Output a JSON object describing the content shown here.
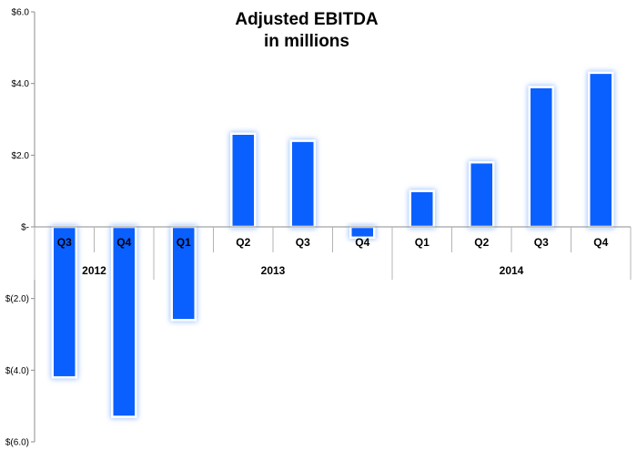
{
  "chart_data": {
    "type": "bar",
    "title": "Adjusted EBITDA",
    "subtitle": "in millions",
    "xlabel": "",
    "ylabel": "",
    "ylim": [
      -6.0,
      6.0
    ],
    "yticks": [
      6.0,
      4.0,
      2.0,
      0.0,
      -2.0,
      -4.0,
      -6.0
    ],
    "ytick_labels": [
      "$6.0",
      "$4.0",
      "$2.0",
      "$-",
      "$(2.0)",
      "$(4.0)",
      "$(6.0)"
    ],
    "categories": [
      "Q3",
      "Q4",
      "Q1",
      "Q2",
      "Q3",
      "Q4",
      "Q1",
      "Q2",
      "Q3",
      "Q4"
    ],
    "years": [
      {
        "label": "2012",
        "start": 0,
        "end": 1
      },
      {
        "label": "2013",
        "start": 2,
        "end": 5
      },
      {
        "label": "2014",
        "start": 6,
        "end": 9
      }
    ],
    "values": [
      -4.2,
      -5.3,
      -2.6,
      2.6,
      2.4,
      -0.3,
      1.0,
      1.8,
      3.9,
      4.3
    ],
    "bar_color": "#0A5FFF",
    "glow_color": "#9FC3FF",
    "grid": false,
    "legend": "none"
  }
}
